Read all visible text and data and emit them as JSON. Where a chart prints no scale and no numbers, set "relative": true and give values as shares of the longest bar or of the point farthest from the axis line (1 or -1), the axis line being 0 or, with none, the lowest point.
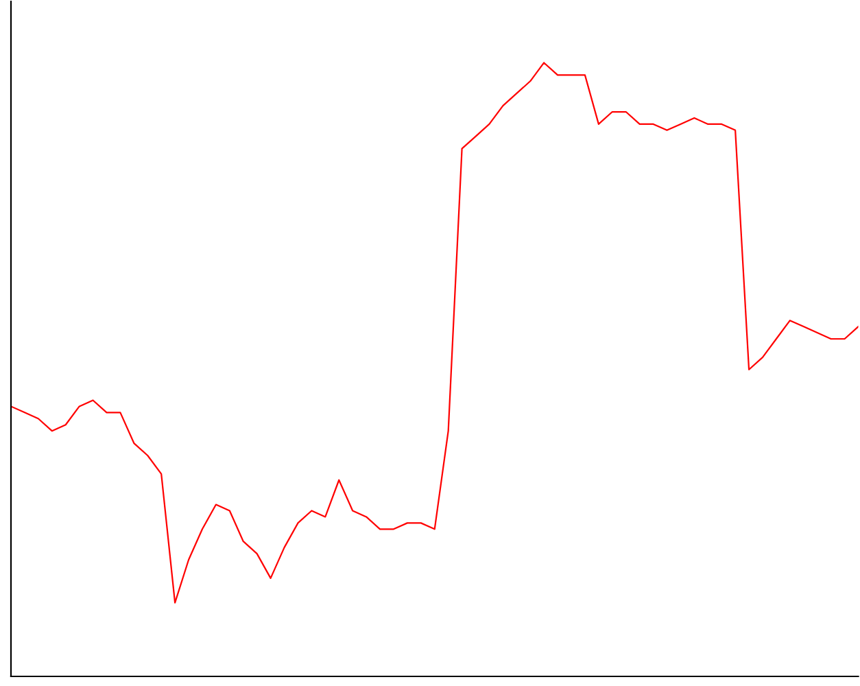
{
  "chart_data": {
    "type": "line",
    "relative": true,
    "categories": [
      null,
      null,
      null,
      null,
      null,
      null,
      null,
      null,
      null,
      null,
      null,
      null,
      null,
      null,
      null,
      null,
      null,
      null,
      null,
      null,
      null,
      null,
      null,
      null,
      null,
      null,
      null,
      null,
      null,
      null,
      null,
      null,
      null,
      null,
      null,
      null,
      null,
      null,
      null,
      null,
      null,
      null,
      null,
      null,
      null,
      null,
      null,
      null,
      null,
      null,
      null,
      null,
      null,
      null,
      null,
      null,
      null,
      null,
      null,
      null,
      null,
      null,
      null
    ],
    "series": [
      {
        "color": "#ff0000",
        "values": [
          0.44,
          0.43,
          0.42,
          0.4,
          0.41,
          0.44,
          0.45,
          0.43,
          0.43,
          0.38,
          0.36,
          0.33,
          0.12,
          0.19,
          0.24,
          0.28,
          0.27,
          0.22,
          0.2,
          0.16,
          0.21,
          0.25,
          0.27,
          0.26,
          0.32,
          0.27,
          0.26,
          0.24,
          0.24,
          0.25,
          0.25,
          0.24,
          0.4,
          0.86,
          0.88,
          0.9,
          0.93,
          0.95,
          0.97,
          1.0,
          0.98,
          0.98,
          0.98,
          0.9,
          0.92,
          0.92,
          0.9,
          0.9,
          0.89,
          0.9,
          0.91,
          0.9,
          0.9,
          0.89,
          0.5,
          0.52,
          0.55,
          0.58,
          0.57,
          0.56,
          0.55,
          0.55,
          0.57
        ]
      }
    ],
    "grid": false,
    "legend": false,
    "marker": "none",
    "line_style": "solid"
  }
}
